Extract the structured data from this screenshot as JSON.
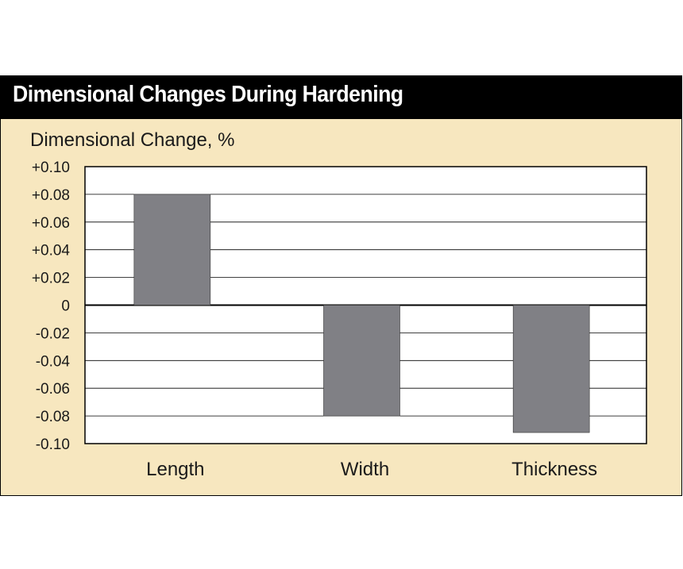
{
  "colors": {
    "panel_background": "#f7e7bf",
    "title_background": "#000000",
    "title_text": "#ffffff",
    "bar_fill": "#808085",
    "plot_background": "#ffffff",
    "grid": "#000000"
  },
  "chart_data": {
    "type": "bar",
    "title": "Dimensional Changes During Hardening",
    "xlabel": "",
    "ylabel": "Dimensional Change, %",
    "categories": [
      "Length",
      "Width",
      "Thickness"
    ],
    "values": [
      0.08,
      -0.08,
      -0.092
    ],
    "ylim": [
      -0.1,
      0.1
    ],
    "yticks": [
      0.1,
      0.08,
      0.06,
      0.04,
      0.02,
      0,
      -0.02,
      -0.04,
      -0.06,
      -0.08,
      -0.1
    ],
    "ytick_labels": [
      "+0.10",
      "+0.08",
      "+0.06",
      "+0.04",
      "+0.02",
      "0",
      "-0.02",
      "-0.04",
      "-0.06",
      "-0.08",
      "-0.10"
    ],
    "grid": true,
    "legend": "none"
  }
}
